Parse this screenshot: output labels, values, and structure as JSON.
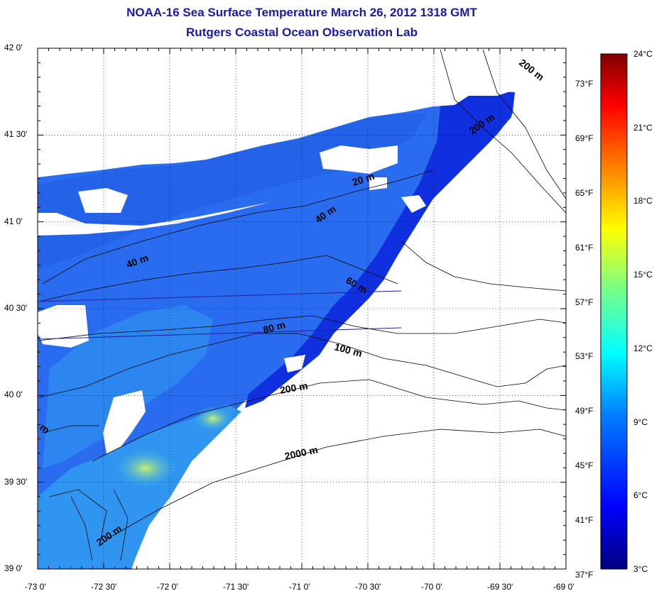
{
  "title": {
    "line1": "NOAA-16 Sea Surface Temperature March 26, 2012 1318 GMT",
    "line2": "Rutgers Coastal Ocean Observation Lab"
  },
  "map": {
    "lon_ticks": [
      "-73 0'",
      "-72 30'",
      "-72 0'",
      "-71 30'",
      "-71 0'",
      "-70 30'",
      "-70 0'",
      "-69 30'",
      "-69 0'"
    ],
    "lat_ticks": [
      "42 0'",
      "41 30'",
      "41 0'",
      "40 30'",
      "40 0'",
      "39 30'",
      "39 0'"
    ],
    "lon_range": [
      -73,
      -69
    ],
    "lat_range": [
      39,
      42
    ],
    "isobath_labels": [
      "200 m",
      "200 m",
      "20 m",
      "40 m",
      "40 m",
      "60 m",
      "80 m",
      "100 m",
      "200 m",
      "2000 m",
      "200 m",
      "m"
    ],
    "land_color": "#ffffff",
    "sst_palette": [
      "#000080",
      "#0000ff",
      "#0080ff",
      "#00ffff",
      "#80ff80",
      "#ffff00",
      "#ff8000",
      "#ff0000",
      "#800000"
    ]
  },
  "colorbar": {
    "celsius_labels": [
      "24°C",
      "21°C",
      "18°C",
      "15°C",
      "12°C",
      "9°C",
      "6°C",
      "3°C"
    ],
    "fahrenheit_labels": [
      "73°F",
      "69°F",
      "65°F",
      "61°F",
      "57°F",
      "53°F",
      "49°F",
      "45°F",
      "41°F",
      "37°F"
    ],
    "celsius_range": [
      3,
      24
    ],
    "fahrenheit_range": [
      37,
      75.2
    ]
  }
}
